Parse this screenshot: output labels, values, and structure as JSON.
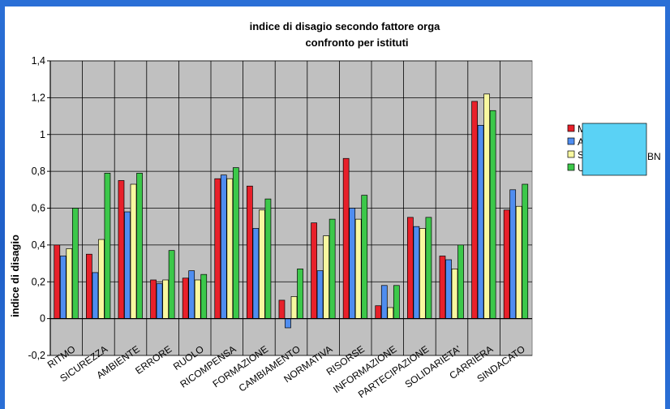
{
  "chart_data": {
    "type": "bar",
    "title": "indice di disagio secondo fattore orga",
    "subtitle": "confronto per istituti",
    "ylabel": "indice di disagio",
    "xlabel": "",
    "ylim": [
      -0.2,
      1.4
    ],
    "yticks": [
      {
        "value": 1.4,
        "label": "1,4"
      },
      {
        "value": 1.2,
        "label": "1,2"
      },
      {
        "value": 1.0,
        "label": "1"
      },
      {
        "value": 0.8,
        "label": "0,8"
      },
      {
        "value": 0.6,
        "label": "0,6"
      },
      {
        "value": 0.4,
        "label": "0,4"
      },
      {
        "value": 0.2,
        "label": "0,2"
      },
      {
        "value": 0.0,
        "label": "0"
      },
      {
        "value": -0.2,
        "label": "-0,2"
      }
    ],
    "grid": true,
    "legend_position": "right",
    "categories": [
      "RITMO",
      "SICUREZZA",
      "AMBIENTE",
      "ERRORE",
      "RUOLO",
      "RICOMPENSA",
      "FORMAZIONE",
      "CAMBIAMENTO",
      "NORMATIVA",
      "RISORSE",
      "INFORMAZIONE",
      "PARTECIPAZIONE",
      "SOLIDARIETA'",
      "CARRIERA",
      "SINDACATO"
    ],
    "series": [
      {
        "name": "M",
        "color": "#e8202a",
        "values": [
          0.4,
          0.35,
          0.75,
          0.21,
          0.22,
          0.76,
          0.72,
          0.1,
          0.52,
          0.87,
          0.07,
          0.55,
          0.34,
          1.18,
          0.59
        ]
      },
      {
        "name": "A",
        "color": "#4f8df0",
        "values": [
          0.34,
          0.25,
          0.58,
          0.19,
          0.26,
          0.78,
          0.49,
          -0.05,
          0.26,
          0.6,
          0.18,
          0.5,
          0.32,
          1.05,
          0.7
        ]
      },
      {
        "name": "S",
        "color": "#f8f8a0",
        "values": [
          0.38,
          0.43,
          0.73,
          0.21,
          0.21,
          0.76,
          0.59,
          0.12,
          0.45,
          0.54,
          0.06,
          0.49,
          0.27,
          1.22,
          0.61
        ]
      },
      {
        "name": "U",
        "color": "#3cc84a",
        "values": [
          0.6,
          0.79,
          0.79,
          0.37,
          0.24,
          0.82,
          0.65,
          0.27,
          0.54,
          0.67,
          0.18,
          0.55,
          0.4,
          1.13,
          0.73
        ]
      }
    ],
    "legend_overlay_text": "BN",
    "colors": {
      "plot_background": "#c0c0c0",
      "chart_background": "#ffffff",
      "legend_overlay": "#5ad2f5",
      "page_background": "#2a6fd6"
    }
  }
}
